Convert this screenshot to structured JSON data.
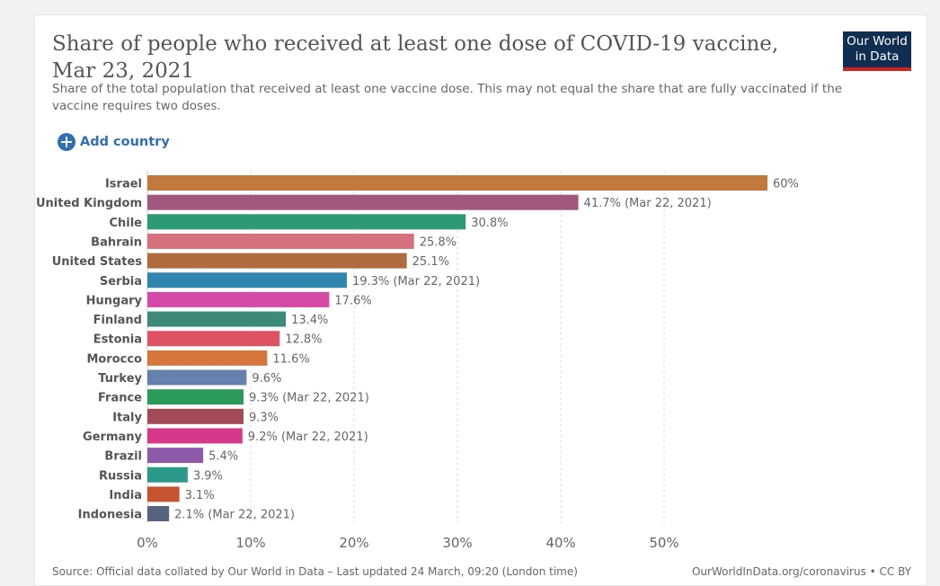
{
  "header": {
    "title": "Share of people who received at least one dose of COVID-19 vaccine, Mar 23, 2021",
    "subtitle": "Share of the total population that received at least one vaccine dose. This may not equal the share that are fully vaccinated if the vaccine requires two doses.",
    "logo_line1": "Our World",
    "logo_line2": "in Data"
  },
  "controls": {
    "add_country_label": "Add country"
  },
  "footer": {
    "source": "Source: Official data collated by Our World in Data – Last updated 24 March, 09:20 (London time)",
    "credit": "OurWorldInData.org/coronavirus • CC BY"
  },
  "chart_data": {
    "type": "bar",
    "orientation": "horizontal",
    "title": "Share of people who received at least one dose of COVID-19 vaccine, Mar 23, 2021",
    "xlim": [
      0,
      60
    ],
    "xticks": [
      0,
      10,
      20,
      30,
      40,
      50
    ],
    "xtick_labels": [
      "0%",
      "10%",
      "20%",
      "30%",
      "40%",
      "50%"
    ],
    "grid": "vertical dashed",
    "categories": [
      "Israel",
      "United Kingdom",
      "Chile",
      "Bahrain",
      "United States",
      "Serbia",
      "Hungary",
      "Finland",
      "Estonia",
      "Morocco",
      "Turkey",
      "France",
      "Italy",
      "Germany",
      "Brazil",
      "Russia",
      "India",
      "Indonesia"
    ],
    "values": [
      60,
      41.7,
      30.8,
      25.8,
      25.1,
      19.3,
      17.6,
      13.4,
      12.8,
      11.6,
      9.6,
      9.3,
      9.3,
      9.2,
      5.4,
      3.9,
      3.1,
      2.1
    ],
    "value_labels": [
      "60%",
      "41.7% (Mar 22, 2021)",
      "30.8%",
      "25.8%",
      "25.1%",
      "19.3% (Mar 22, 2021)",
      "17.6%",
      "13.4%",
      "12.8%",
      "11.6%",
      "9.6%",
      "9.3% (Mar 22, 2021)",
      "9.3%",
      "9.2% (Mar 22, 2021)",
      "5.4%",
      "3.9%",
      "3.1%",
      "2.1% (Mar 22, 2021)"
    ],
    "colors": [
      "#c1783a",
      "#a2577f",
      "#2c9a75",
      "#d6707e",
      "#b06a3e",
      "#2f85ad",
      "#d54aa7",
      "#3e8a7a",
      "#df5266",
      "#d6763c",
      "#6681ad",
      "#2c9a5a",
      "#a24b57",
      "#d8388a",
      "#8c5aa8",
      "#2c9a8a",
      "#c65430",
      "#56657d"
    ]
  }
}
